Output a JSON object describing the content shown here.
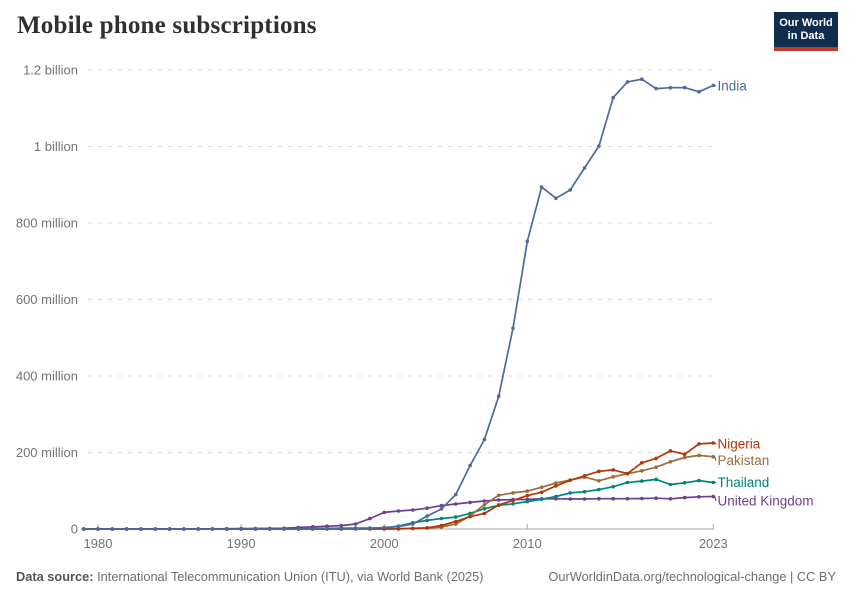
{
  "header": {
    "title": "Mobile phone subscriptions",
    "logo": {
      "line1": "Our World",
      "line2": "in Data",
      "background": "#102D4E",
      "accent": "#C0392B"
    }
  },
  "footer": {
    "source_label": "Data source:",
    "source_text": " International Telecommunication Union (ITU), via World Bank (2025)",
    "right_text": "OurWorldinData.org/technological-change | CC BY"
  },
  "chart_data": {
    "type": "line",
    "title": "Mobile phone subscriptions",
    "unit": "millions of subscriptions",
    "grid": true,
    "legend_position": "end-of-line labels",
    "ylim": [
      0,
      1200
    ],
    "x_ticks": [
      1980,
      1990,
      2000,
      2010,
      2023
    ],
    "y_ticks": [
      {
        "value": 0,
        "label": "0"
      },
      {
        "value": 200,
        "label": "200 million"
      },
      {
        "value": 400,
        "label": "400 million"
      },
      {
        "value": 600,
        "label": "600 million"
      },
      {
        "value": 800,
        "label": "800 million"
      },
      {
        "value": 1000,
        "label": "1 billion"
      },
      {
        "value": 1200,
        "label": "1.2 billion"
      }
    ],
    "x": [
      1979,
      1980,
      1981,
      1982,
      1983,
      1984,
      1985,
      1986,
      1987,
      1988,
      1989,
      1990,
      1991,
      1992,
      1993,
      1994,
      1995,
      1996,
      1997,
      1998,
      1999,
      2000,
      2001,
      2002,
      2003,
      2004,
      2005,
      2006,
      2007,
      2008,
      2009,
      2010,
      2011,
      2012,
      2013,
      2014,
      2015,
      2016,
      2017,
      2018,
      2019,
      2020,
      2021,
      2022,
      2023
    ],
    "series": [
      {
        "name": "India",
        "color": "#4C6A9C",
        "values": [
          0,
          0,
          0,
          0,
          0,
          0,
          0,
          0,
          0,
          0,
          0,
          0,
          0,
          0,
          0,
          0,
          0.08,
          0.33,
          0.88,
          1.2,
          1.88,
          3.58,
          6.43,
          13,
          33.69,
          52.22,
          90.14,
          166.05,
          233.62,
          346.89,
          525.09,
          752.19,
          893.86,
          864.72,
          886.3,
          944.01,
          1001.06,
          1127.81,
          1168.9,
          1176,
          1151.48,
          1153.71,
          1154.05,
          1142.93,
          1159.66
        ]
      },
      {
        "name": "Nigeria",
        "color": "#B13507",
        "values": [
          0,
          0,
          0,
          0,
          0,
          0,
          0,
          0,
          0,
          0,
          0,
          0,
          0,
          0,
          0,
          0,
          0,
          0,
          0,
          0,
          0,
          0.03,
          0.27,
          1.57,
          3.15,
          9.15,
          19.52,
          32.32,
          40.4,
          62.99,
          74.52,
          87.3,
          95.89,
          112.78,
          127.25,
          138.96,
          150.83,
          154.53,
          144.92,
          172.99,
          184.7,
          204.23,
          195.46,
          222.57,
          224.71
        ]
      },
      {
        "name": "Pakistan",
        "color": "#996D39",
        "values": [
          0,
          0,
          0,
          0,
          0,
          0,
          0,
          0,
          0,
          0,
          0,
          0,
          0,
          0,
          0,
          0,
          0.04,
          0.07,
          0.14,
          0.2,
          0.27,
          0.31,
          0.74,
          1.24,
          2.4,
          5.02,
          12.77,
          34.51,
          63.16,
          88.02,
          94.34,
          99.19,
          108.89,
          120.15,
          127.74,
          135.76,
          125.89,
          136.49,
          144.53,
          152.24,
          161.58,
          175.62,
          186.89,
          192.53,
          188.89
        ]
      },
      {
        "name": "Thailand",
        "color": "#00847E",
        "values": [
          0,
          0,
          0,
          0,
          0,
          0,
          0,
          0.01,
          0.01,
          0.02,
          0.04,
          0.06,
          0.12,
          0.25,
          0.41,
          0.77,
          1.3,
          1.84,
          2.2,
          2.28,
          2.34,
          3.06,
          7.55,
          16.12,
          22.38,
          27.38,
          31.14,
          40.78,
          53.01,
          61.84,
          65.99,
          71.73,
          77.6,
          85.01,
          94.5,
          97.6,
          102.94,
          110.6,
          121.53,
          125.1,
          129.61,
          116.29,
          120.9,
          126.41,
          121.47
        ]
      },
      {
        "name": "United Kingdom",
        "color": "#6D3E91",
        "values": [
          0,
          0,
          0,
          0,
          0,
          0,
          0.05,
          0.12,
          0.39,
          0.5,
          0.8,
          1.14,
          1.26,
          1.51,
          2.2,
          3.94,
          5.74,
          7.25,
          8.84,
          13,
          27.19,
          43.45,
          47.03,
          49.68,
          54.35,
          61.09,
          65.47,
          69.66,
          73.13,
          75.75,
          76.89,
          77.26,
          78.9,
          79.18,
          78.55,
          78.46,
          79.3,
          79.1,
          79.14,
          79.8,
          80.5,
          79.01,
          82,
          84.2,
          84.87
        ]
      }
    ]
  }
}
